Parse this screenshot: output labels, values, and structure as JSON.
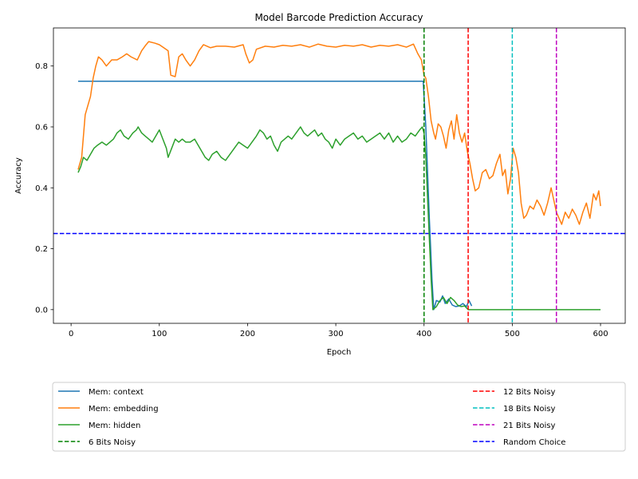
{
  "chart_data": {
    "type": "line",
    "title": "Model Barcode Prediction Accuracy",
    "xlabel": "Epoch",
    "ylabel": "Accuracy",
    "xlim": [
      -20,
      628
    ],
    "ylim": [
      -0.045,
      0.925
    ],
    "xticks": [
      0,
      100,
      200,
      300,
      400,
      500,
      600
    ],
    "yticks": [
      0.0,
      0.2,
      0.4,
      0.6,
      0.8
    ],
    "ytick_labels": [
      "0.0",
      "0.2",
      "0.4",
      "0.6",
      "0.8"
    ],
    "grid": false,
    "legend_placement": "below-plot",
    "series": [
      {
        "name": "Mem: context",
        "color": "#1f77b4",
        "style": "solid",
        "points": [
          [
            8,
            0.75
          ],
          [
            100,
            0.75
          ],
          [
            200,
            0.75
          ],
          [
            300,
            0.75
          ],
          [
            399,
            0.75
          ],
          [
            402,
            0.6
          ],
          [
            406,
            0.3
          ],
          [
            409,
            0.1
          ],
          [
            411,
            0.0
          ],
          [
            414,
            0.03
          ],
          [
            418,
            0.025
          ],
          [
            421,
            0.045
          ],
          [
            424,
            0.02
          ],
          [
            428,
            0.035
          ],
          [
            432,
            0.015
          ],
          [
            436,
            0.01
          ],
          [
            440,
            0.012
          ],
          [
            444,
            0.02
          ],
          [
            448,
            0.01
          ],
          [
            451,
            0.03
          ],
          [
            454,
            0.012
          ]
        ]
      },
      {
        "name": "Mem: embedding",
        "color": "#ff7f0e",
        "style": "solid",
        "points": [
          [
            8,
            0.46
          ],
          [
            12,
            0.5
          ],
          [
            16,
            0.64
          ],
          [
            19,
            0.67
          ],
          [
            22,
            0.7
          ],
          [
            25,
            0.76
          ],
          [
            28,
            0.8
          ],
          [
            31,
            0.83
          ],
          [
            35,
            0.82
          ],
          [
            40,
            0.8
          ],
          [
            46,
            0.82
          ],
          [
            52,
            0.82
          ],
          [
            58,
            0.83
          ],
          [
            63,
            0.84
          ],
          [
            68,
            0.83
          ],
          [
            75,
            0.82
          ],
          [
            80,
            0.85
          ],
          [
            85,
            0.87
          ],
          [
            88,
            0.88
          ],
          [
            95,
            0.875
          ],
          [
            100,
            0.87
          ],
          [
            105,
            0.86
          ],
          [
            110,
            0.85
          ],
          [
            113,
            0.77
          ],
          [
            118,
            0.765
          ],
          [
            122,
            0.83
          ],
          [
            126,
            0.84
          ],
          [
            130,
            0.82
          ],
          [
            135,
            0.8
          ],
          [
            140,
            0.82
          ],
          [
            145,
            0.85
          ],
          [
            150,
            0.87
          ],
          [
            158,
            0.86
          ],
          [
            165,
            0.865
          ],
          [
            175,
            0.865
          ],
          [
            185,
            0.862
          ],
          [
            195,
            0.87
          ],
          [
            198,
            0.84
          ],
          [
            202,
            0.81
          ],
          [
            206,
            0.82
          ],
          [
            210,
            0.855
          ],
          [
            220,
            0.865
          ],
          [
            230,
            0.862
          ],
          [
            240,
            0.868
          ],
          [
            250,
            0.865
          ],
          [
            260,
            0.87
          ],
          [
            270,
            0.862
          ],
          [
            280,
            0.872
          ],
          [
            290,
            0.865
          ],
          [
            300,
            0.862
          ],
          [
            310,
            0.868
          ],
          [
            320,
            0.865
          ],
          [
            330,
            0.87
          ],
          [
            340,
            0.862
          ],
          [
            350,
            0.868
          ],
          [
            360,
            0.865
          ],
          [
            370,
            0.87
          ],
          [
            380,
            0.862
          ],
          [
            388,
            0.872
          ],
          [
            393,
            0.84
          ],
          [
            397,
            0.82
          ],
          [
            400,
            0.77
          ],
          [
            402,
            0.76
          ],
          [
            405,
            0.7
          ],
          [
            408,
            0.62
          ],
          [
            411,
            0.58
          ],
          [
            413,
            0.56
          ],
          [
            416,
            0.61
          ],
          [
            419,
            0.6
          ],
          [
            422,
            0.57
          ],
          [
            425,
            0.53
          ],
          [
            428,
            0.59
          ],
          [
            431,
            0.62
          ],
          [
            434,
            0.56
          ],
          [
            437,
            0.64
          ],
          [
            440,
            0.58
          ],
          [
            443,
            0.55
          ],
          [
            446,
            0.58
          ],
          [
            449,
            0.52
          ],
          [
            452,
            0.48
          ],
          [
            455,
            0.43
          ],
          [
            458,
            0.39
          ],
          [
            462,
            0.4
          ],
          [
            466,
            0.45
          ],
          [
            470,
            0.46
          ],
          [
            474,
            0.43
          ],
          [
            478,
            0.44
          ],
          [
            482,
            0.48
          ],
          [
            486,
            0.51
          ],
          [
            489,
            0.44
          ],
          [
            492,
            0.46
          ],
          [
            495,
            0.38
          ],
          [
            498,
            0.43
          ],
          [
            501,
            0.53
          ],
          [
            504,
            0.5
          ],
          [
            507,
            0.45
          ],
          [
            510,
            0.35
          ],
          [
            513,
            0.3
          ],
          [
            516,
            0.31
          ],
          [
            520,
            0.34
          ],
          [
            524,
            0.33
          ],
          [
            528,
            0.36
          ],
          [
            532,
            0.34
          ],
          [
            536,
            0.31
          ],
          [
            540,
            0.35
          ],
          [
            544,
            0.4
          ],
          [
            547,
            0.36
          ],
          [
            550,
            0.32
          ],
          [
            553,
            0.3
          ],
          [
            556,
            0.28
          ],
          [
            560,
            0.32
          ],
          [
            564,
            0.3
          ],
          [
            568,
            0.33
          ],
          [
            572,
            0.31
          ],
          [
            576,
            0.28
          ],
          [
            580,
            0.32
          ],
          [
            584,
            0.35
          ],
          [
            588,
            0.3
          ],
          [
            592,
            0.38
          ],
          [
            595,
            0.36
          ],
          [
            598,
            0.39
          ],
          [
            600,
            0.34
          ]
        ]
      },
      {
        "name": "Mem: hidden",
        "color": "#2ca02c",
        "style": "solid",
        "points": [
          [
            8,
            0.45
          ],
          [
            11,
            0.47
          ],
          [
            14,
            0.5
          ],
          [
            18,
            0.49
          ],
          [
            22,
            0.51
          ],
          [
            26,
            0.53
          ],
          [
            30,
            0.54
          ],
          [
            35,
            0.55
          ],
          [
            40,
            0.54
          ],
          [
            44,
            0.55
          ],
          [
            48,
            0.56
          ],
          [
            52,
            0.58
          ],
          [
            56,
            0.59
          ],
          [
            60,
            0.57
          ],
          [
            65,
            0.56
          ],
          [
            70,
            0.58
          ],
          [
            74,
            0.59
          ],
          [
            76,
            0.6
          ],
          [
            80,
            0.58
          ],
          [
            84,
            0.57
          ],
          [
            88,
            0.56
          ],
          [
            92,
            0.55
          ],
          [
            96,
            0.57
          ],
          [
            100,
            0.59
          ],
          [
            104,
            0.56
          ],
          [
            108,
            0.53
          ],
          [
            110,
            0.5
          ],
          [
            114,
            0.53
          ],
          [
            118,
            0.56
          ],
          [
            122,
            0.55
          ],
          [
            126,
            0.56
          ],
          [
            130,
            0.55
          ],
          [
            135,
            0.55
          ],
          [
            140,
            0.56
          ],
          [
            144,
            0.54
          ],
          [
            148,
            0.52
          ],
          [
            152,
            0.5
          ],
          [
            156,
            0.49
          ],
          [
            160,
            0.51
          ],
          [
            165,
            0.52
          ],
          [
            170,
            0.5
          ],
          [
            175,
            0.49
          ],
          [
            180,
            0.51
          ],
          [
            185,
            0.53
          ],
          [
            190,
            0.55
          ],
          [
            195,
            0.54
          ],
          [
            200,
            0.53
          ],
          [
            205,
            0.55
          ],
          [
            210,
            0.57
          ],
          [
            214,
            0.59
          ],
          [
            218,
            0.58
          ],
          [
            222,
            0.56
          ],
          [
            226,
            0.57
          ],
          [
            230,
            0.54
          ],
          [
            234,
            0.52
          ],
          [
            238,
            0.55
          ],
          [
            242,
            0.56
          ],
          [
            246,
            0.57
          ],
          [
            250,
            0.56
          ],
          [
            255,
            0.58
          ],
          [
            260,
            0.6
          ],
          [
            264,
            0.58
          ],
          [
            268,
            0.57
          ],
          [
            272,
            0.58
          ],
          [
            276,
            0.59
          ],
          [
            280,
            0.57
          ],
          [
            284,
            0.58
          ],
          [
            288,
            0.56
          ],
          [
            292,
            0.55
          ],
          [
            296,
            0.53
          ],
          [
            300,
            0.56
          ],
          [
            305,
            0.54
          ],
          [
            310,
            0.56
          ],
          [
            315,
            0.57
          ],
          [
            320,
            0.58
          ],
          [
            325,
            0.56
          ],
          [
            330,
            0.57
          ],
          [
            335,
            0.55
          ],
          [
            340,
            0.56
          ],
          [
            345,
            0.57
          ],
          [
            350,
            0.58
          ],
          [
            355,
            0.56
          ],
          [
            360,
            0.58
          ],
          [
            365,
            0.55
          ],
          [
            370,
            0.57
          ],
          [
            375,
            0.55
          ],
          [
            380,
            0.56
          ],
          [
            385,
            0.58
          ],
          [
            390,
            0.57
          ],
          [
            395,
            0.59
          ],
          [
            398,
            0.6
          ],
          [
            400,
            0.58
          ],
          [
            402,
            0.5
          ],
          [
            405,
            0.3
          ],
          [
            408,
            0.1
          ],
          [
            410,
            0.0
          ],
          [
            414,
            0.01
          ],
          [
            418,
            0.03
          ],
          [
            422,
            0.04
          ],
          [
            426,
            0.02
          ],
          [
            430,
            0.04
          ],
          [
            434,
            0.03
          ],
          [
            438,
            0.015
          ],
          [
            442,
            0.01
          ],
          [
            446,
            0.012
          ],
          [
            450,
            0.0
          ],
          [
            500,
            0.0
          ],
          [
            550,
            0.0
          ],
          [
            600,
            0.0
          ]
        ]
      }
    ],
    "vlines": [
      {
        "name": "6 Bits Noisy",
        "x": 400,
        "color": "#008000"
      },
      {
        "name": "12 Bits Noisy",
        "x": 450,
        "color": "#ff0000"
      },
      {
        "name": "18 Bits Noisy",
        "x": 500,
        "color": "#00bfbf"
      },
      {
        "name": "21 Bits Noisy",
        "x": 550,
        "color": "#bf00bf"
      }
    ],
    "hlines": [
      {
        "name": "Random Choice",
        "y": 0.25,
        "color": "#0000ff"
      }
    ],
    "legend": {
      "left": [
        "Mem: context",
        "Mem: embedding",
        "Mem: hidden",
        "6 Bits Noisy"
      ],
      "right": [
        "12 Bits Noisy",
        "18 Bits Noisy",
        "21 Bits Noisy",
        "Random Choice"
      ]
    }
  }
}
